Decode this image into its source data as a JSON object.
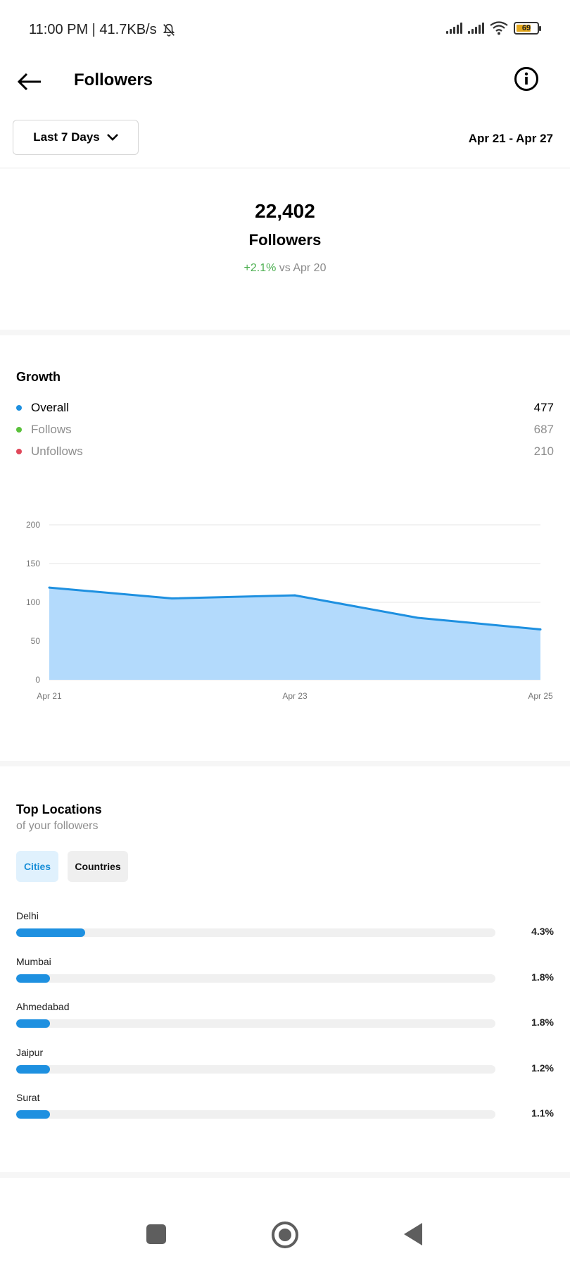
{
  "status_bar": {
    "time_speed": "11:00 PM | 41.7KB/s",
    "battery_level": "69"
  },
  "header": {
    "title": "Followers",
    "back_icon": "back-arrow-icon",
    "info_icon": "info-icon"
  },
  "filter": {
    "range_label": "Last 7 Days",
    "date_range": "Apr 21 - Apr 27"
  },
  "summary": {
    "count": "22,402",
    "label": "Followers",
    "delta": "+2.1%",
    "compare": " vs Apr 20"
  },
  "growth": {
    "title": "Growth",
    "legend": [
      {
        "name": "Overall",
        "value": "477",
        "color": "#1e90e0"
      },
      {
        "name": "Follows",
        "value": "687",
        "color": "#5ac13b"
      },
      {
        "name": "Unfollows",
        "value": "210",
        "color": "#e0485a"
      }
    ]
  },
  "chart_data": {
    "type": "area",
    "x": [
      "Apr 21",
      "Apr 22",
      "Apr 23",
      "Apr 24",
      "Apr 25"
    ],
    "x_tick_labels": [
      "Apr 21",
      "Apr 23",
      "Apr 25"
    ],
    "series": [
      {
        "values": [
          119,
          105,
          109,
          80,
          65
        ]
      }
    ],
    "y_ticks": [
      0,
      50,
      100,
      150,
      200
    ],
    "ylim": [
      0,
      200
    ],
    "grid": true,
    "line_color": "#1e90e0",
    "fill_color": "#b3dafc"
  },
  "locations": {
    "title": "Top Locations",
    "subtitle": "of your followers",
    "tabs": [
      "Cities",
      "Countries"
    ],
    "items": [
      {
        "name": "Delhi",
        "percent": "4.3%",
        "value": 4.3
      },
      {
        "name": "Mumbai",
        "percent": "1.8%",
        "value": 1.8
      },
      {
        "name": "Ahmedabad",
        "percent": "1.8%",
        "value": 1.8
      },
      {
        "name": "Jaipur",
        "percent": "1.2%",
        "value": 1.2
      },
      {
        "name": "Surat",
        "percent": "1.1%",
        "value": 1.1
      }
    ]
  }
}
